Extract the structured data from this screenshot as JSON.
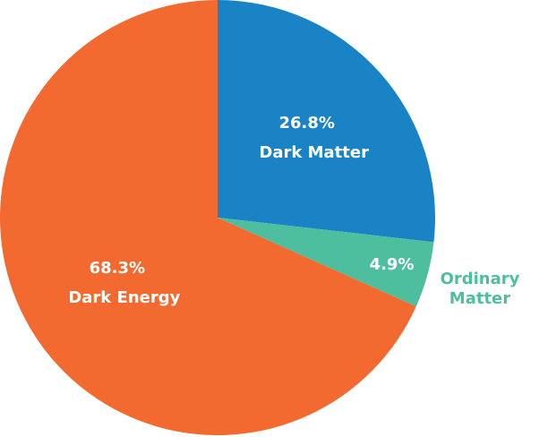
{
  "chart_data": {
    "type": "pie",
    "categories": [
      "Dark Matter",
      "Ordinary Matter",
      "Dark Energy"
    ],
    "values": [
      26.8,
      4.9,
      68.3
    ],
    "value_labels": [
      "26.8%",
      "4.9%",
      "68.3%"
    ],
    "colors": [
      "#1a83c6",
      "#4dbf9f",
      "#f26a2f"
    ]
  }
}
